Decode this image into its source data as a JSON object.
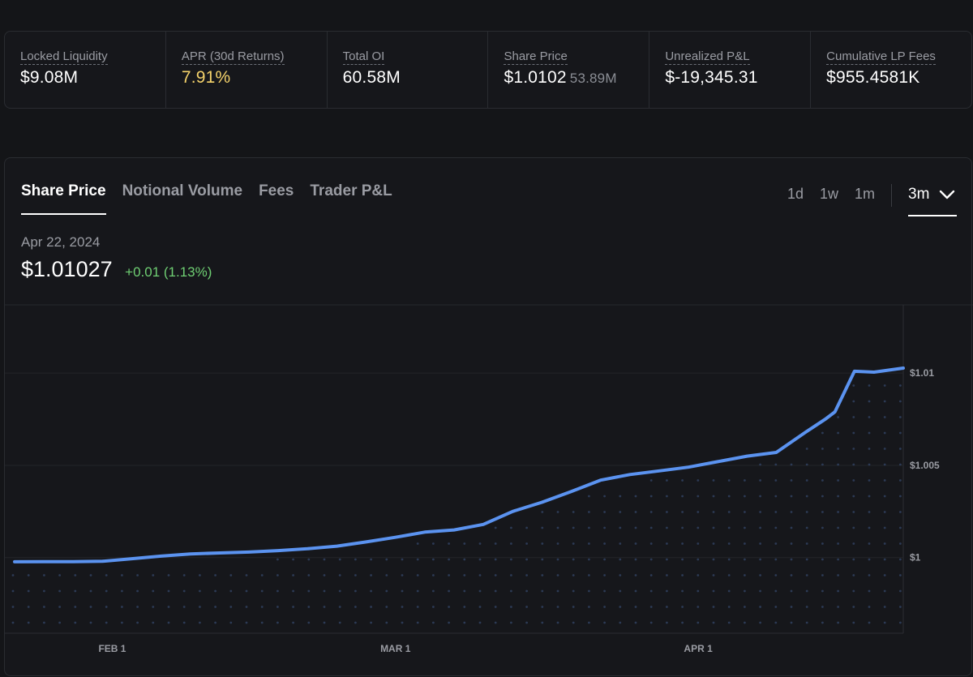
{
  "stats": [
    {
      "label": "Locked Liquidity",
      "value": "$9.08M",
      "sub": ""
    },
    {
      "label": "APR (30d Returns)",
      "value": "7.91%",
      "sub": ""
    },
    {
      "label": "Total OI",
      "value": "60.58M",
      "sub": ""
    },
    {
      "label": "Share Price",
      "value": "$1.0102",
      "sub": "53.89M"
    },
    {
      "label": "Unrealized P&L",
      "value": "$-19,345.31",
      "sub": ""
    },
    {
      "label": "Cumulative LP Fees",
      "value": "$955.4581K",
      "sub": ""
    }
  ],
  "colors": {
    "apr": "#f5d36b",
    "positive": "#6fcf73",
    "line": "#5b93f0"
  },
  "tabs": [
    "Share Price",
    "Notional Volume",
    "Fees",
    "Trader P&L"
  ],
  "ranges": [
    "1d",
    "1w",
    "1m"
  ],
  "selected_range": "3m",
  "selected_range_icon": "chevron-down-icon",
  "hover": {
    "date": "Apr 22, 2024",
    "price": "$1.01027",
    "change": "+0.01 (1.13%)"
  },
  "chart_data": {
    "type": "area",
    "x_ticks": [
      "FEB 1",
      "MAR 1",
      "APR 1"
    ],
    "y_ticks": [
      {
        "label": "$1",
        "value": 1.0
      },
      {
        "label": "$1.005",
        "value": 1.005
      },
      {
        "label": "$1.01",
        "value": 1.01
      }
    ],
    "ylim": [
      0.9959,
      1.0137
    ],
    "x": [
      "2024-01-22",
      "2024-01-25",
      "2024-01-28",
      "2024-01-31",
      "2024-02-03",
      "2024-02-06",
      "2024-02-09",
      "2024-02-12",
      "2024-02-15",
      "2024-02-18",
      "2024-02-21",
      "2024-02-24",
      "2024-02-27",
      "2024-03-01",
      "2024-03-04",
      "2024-03-07",
      "2024-03-10",
      "2024-03-13",
      "2024-03-16",
      "2024-03-19",
      "2024-03-22",
      "2024-03-25",
      "2024-03-28",
      "2024-03-31",
      "2024-04-03",
      "2024-04-06",
      "2024-04-09",
      "2024-04-12",
      "2024-04-14",
      "2024-04-15",
      "2024-04-17",
      "2024-04-19",
      "2024-04-22"
    ],
    "values": [
      0.99977,
      0.99978,
      0.99978,
      0.9998,
      0.99994,
      1.00008,
      1.0002,
      1.00025,
      1.0003,
      1.00038,
      1.00048,
      1.00062,
      1.00085,
      1.0011,
      1.00138,
      1.0015,
      1.0018,
      1.0025,
      1.003,
      1.00358,
      1.0042,
      1.0045,
      1.0047,
      1.0049,
      1.0052,
      1.0055,
      1.0057,
      1.0068,
      1.0075,
      1.0079,
      1.0101,
      1.01005,
      1.01027
    ],
    "grid": "dotted",
    "legend": "none"
  }
}
